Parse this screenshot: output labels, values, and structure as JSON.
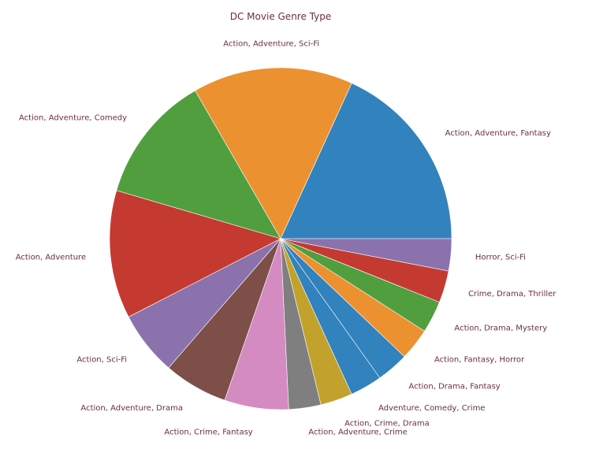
{
  "chart_data": {
    "type": "pie",
    "title": "DC Movie Genre Type",
    "start_angle_deg": 0,
    "direction": "counterclockwise",
    "slices": [
      {
        "label": "Action, Adventure, Fantasy",
        "value": 6,
        "color": "#3182bd"
      },
      {
        "label": "Action, Adventure, Sci-Fi",
        "value": 5,
        "color": "#ec9130"
      },
      {
        "label": "Action, Adventure, Comedy",
        "value": 4,
        "color": "#519e3e"
      },
      {
        "label": "Action, Adventure",
        "value": 4,
        "color": "#c43a31"
      },
      {
        "label": "Action, Sci-Fi",
        "value": 2,
        "color": "#8b72ad"
      },
      {
        "label": "Action, Adventure, Drama",
        "value": 2,
        "color": "#7d4f48"
      },
      {
        "label": "Action, Crime, Fantasy",
        "value": 2,
        "color": "#d48bc1"
      },
      {
        "label": "Action, Adventure, Crime",
        "value": 1,
        "color": "#7f7f7f"
      },
      {
        "label": "Action, Crime, Drama",
        "value": 1,
        "color": "#c2a22d"
      },
      {
        "label": "Adventure, Comedy, Crime",
        "value": 1,
        "color": "#3182bd"
      },
      {
        "label": "Action, Drama, Fantasy",
        "value": 1,
        "color": "#3182bd"
      },
      {
        "label": "Action, Fantasy, Horror",
        "value": 1,
        "color": "#ec9130"
      },
      {
        "label": "Action, Drama, Mystery",
        "value": 1,
        "color": "#519e3e"
      },
      {
        "label": "Crime, Drama, Thriller",
        "value": 1,
        "color": "#c43a31"
      },
      {
        "label": "Horror, Sci-Fi",
        "value": 1,
        "color": "#8b72ad"
      }
    ]
  }
}
